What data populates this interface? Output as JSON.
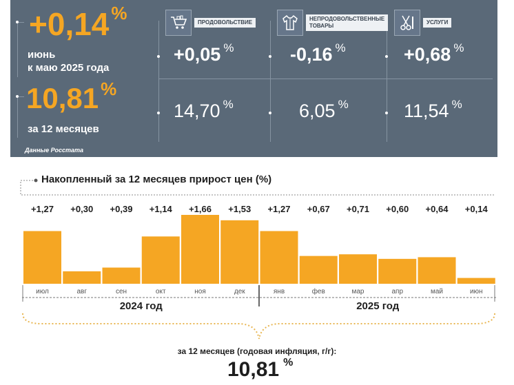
{
  "summary": {
    "monthly_value": "+0,14",
    "percent_sign": "%",
    "monthly_label_line1": "июнь",
    "monthly_label_line2": "к маю 2025 года",
    "annual_value": "10,81",
    "annual_label": "за 12 месяцев",
    "source": "Данные Росстата"
  },
  "categories": [
    {
      "label": "ПРОДОВОЛЬСТВИЕ",
      "icon": "shopping-cart-icon",
      "monthly": "+0,05",
      "annual": "14,70"
    },
    {
      "label_line1": "НЕПРОДОВОЛЬСТВЕННЫЕ",
      "label_line2": "ТОВАРЫ",
      "icon": "clothing-icon",
      "monthly": "-0,16",
      "annual": "6,05"
    },
    {
      "label": "УСЛУГИ",
      "icon": "scissors-tools-icon",
      "monthly": "+0,68",
      "annual": "11,54"
    }
  ],
  "colors": {
    "panel": "#5a6978",
    "accent": "#f5a623",
    "bar": "#f5a623"
  },
  "chart_data": {
    "type": "bar",
    "title": "Накопленный за 12 месяцев прирост цен (%)",
    "categories": [
      "июл",
      "авг",
      "сен",
      "окт",
      "ноя",
      "дек",
      "янв",
      "фев",
      "мар",
      "апр",
      "май",
      "июн"
    ],
    "values": [
      1.27,
      0.3,
      0.39,
      1.14,
      1.66,
      1.53,
      1.27,
      0.67,
      0.71,
      0.6,
      0.64,
      0.14
    ],
    "value_labels": [
      "+1,27",
      "+0,30",
      "+0,39",
      "+1,14",
      "+1,66",
      "+1,53",
      "+1,27",
      "+0,67",
      "+0,71",
      "+0,60",
      "+0,64",
      "+0,14"
    ],
    "year_groups": [
      {
        "label": "2024 год",
        "from": "июл",
        "to": "дек"
      },
      {
        "label": "2025 год",
        "from": "янв",
        "to": "июн"
      }
    ],
    "ylim": [
      0,
      1.66
    ],
    "grid": false
  },
  "footer": {
    "label": "за 12 месяцев (годовая инфляция, г/г):",
    "value": "10,81",
    "percent_sign": "%"
  }
}
